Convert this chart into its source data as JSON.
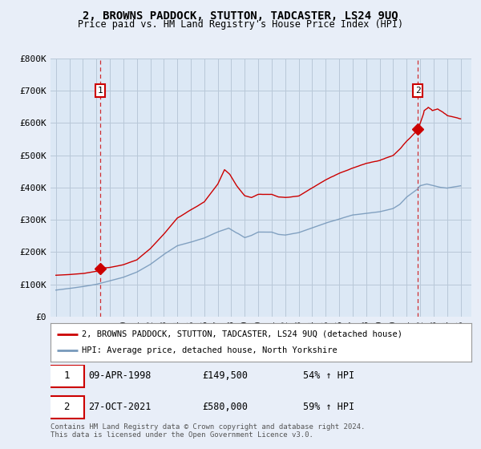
{
  "title": "2, BROWNS PADDOCK, STUTTON, TADCASTER, LS24 9UQ",
  "subtitle": "Price paid vs. HM Land Registry's House Price Index (HPI)",
  "ylim": [
    0,
    800000
  ],
  "xlim_start": 1994.6,
  "xlim_end": 2025.8,
  "yticks": [
    0,
    100000,
    200000,
    300000,
    400000,
    500000,
    600000,
    700000,
    800000
  ],
  "ytick_labels": [
    "£0",
    "£100K",
    "£200K",
    "£300K",
    "£400K",
    "£500K",
    "£600K",
    "£700K",
    "£800K"
  ],
  "background_color": "#e8eef8",
  "plot_bg_color": "#dce8f5",
  "grid_color": "#b8c8d8",
  "red_color": "#cc0000",
  "blue_color": "#7799bb",
  "sale1_x": 1998.27,
  "sale1_y": 149500,
  "sale2_x": 2021.82,
  "sale2_y": 580000,
  "legend_label_red": "2, BROWNS PADDOCK, STUTTON, TADCASTER, LS24 9UQ (detached house)",
  "legend_label_blue": "HPI: Average price, detached house, North Yorkshire",
  "table_row1": [
    "1",
    "09-APR-1998",
    "£149,500",
    "54% ↑ HPI"
  ],
  "table_row2": [
    "2",
    "27-OCT-2021",
    "£580,000",
    "59% ↑ HPI"
  ],
  "footnote": "Contains HM Land Registry data © Crown copyright and database right 2024.\nThis data is licensed under the Open Government Licence v3.0."
}
